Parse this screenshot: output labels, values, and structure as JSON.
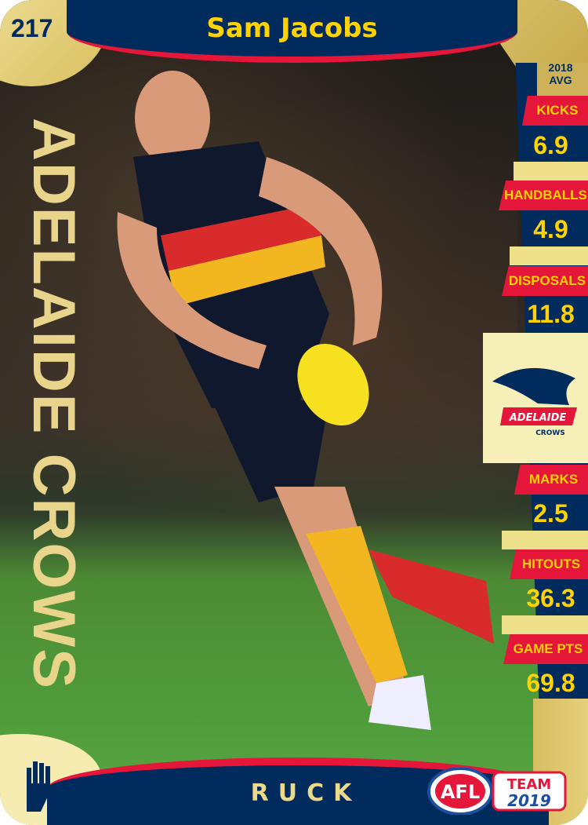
{
  "card": {
    "number": "217",
    "player_name": "Sam Jacobs",
    "team": "ADELAIDE CROWS",
    "position": "RUCK",
    "stats_header": [
      "2018",
      "AVG"
    ],
    "stats": [
      {
        "label": "KICKS",
        "value": "6.9"
      },
      {
        "label": "HANDBALLS",
        "value": "4.9"
      },
      {
        "label": "DISPOSALS",
        "value": "11.8"
      },
      {
        "label": "MARKS",
        "value": "2.5"
      },
      {
        "label": "HITOUTS",
        "value": "36.3"
      },
      {
        "label": "GAME PTS",
        "value": "69.8"
      }
    ],
    "team_logo_text": [
      "ADELAIDE",
      "CROWS"
    ],
    "brand_logo_text": [
      "AFL",
      "TEAM",
      "2019"
    ],
    "position_icon": "hand-icon"
  },
  "colors": {
    "navy": "#002b5c",
    "red": "#e4163a",
    "yellow": "#ffd200",
    "gold": "#cdb25a"
  }
}
